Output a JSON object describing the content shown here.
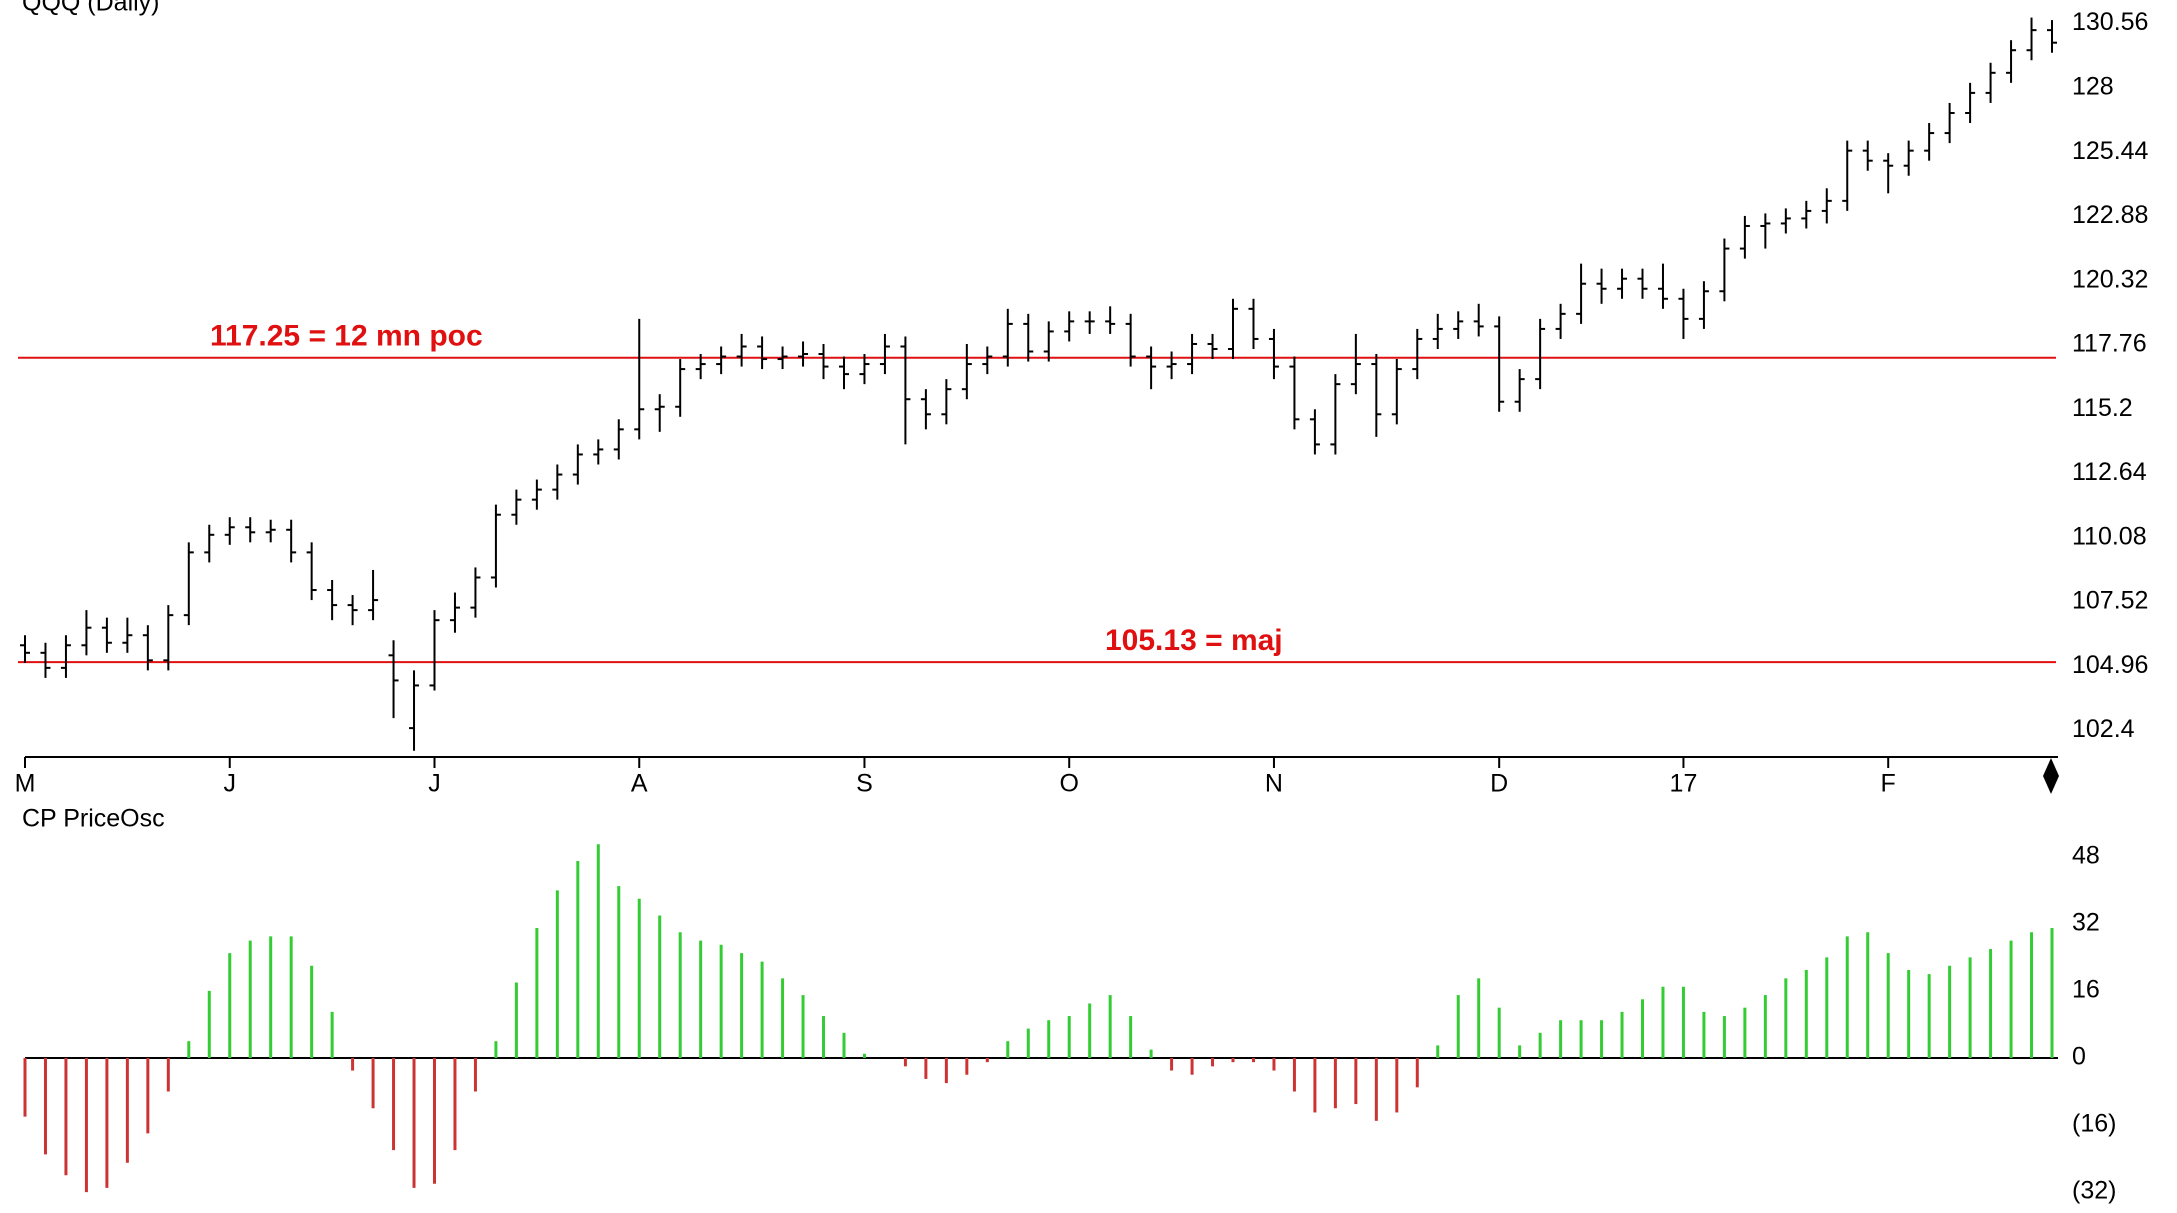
{
  "chart_data": [
    {
      "type": "ohlc",
      "title": "QQQ (Daily)",
      "categories": [
        "M",
        null,
        null,
        null,
        null,
        null,
        null,
        null,
        null,
        null,
        "J",
        null,
        null,
        null,
        null,
        null,
        null,
        null,
        null,
        null,
        "J",
        null,
        null,
        null,
        null,
        null,
        null,
        null,
        null,
        null,
        "A",
        null,
        null,
        null,
        null,
        null,
        null,
        null,
        null,
        null,
        null,
        "S",
        null,
        null,
        null,
        null,
        null,
        null,
        null,
        null,
        null,
        "O",
        null,
        null,
        null,
        null,
        null,
        null,
        null,
        null,
        null,
        "N",
        null,
        null,
        null,
        null,
        null,
        null,
        null,
        null,
        null,
        null,
        "D",
        null,
        null,
        null,
        null,
        null,
        null,
        null,
        null,
        "17",
        null,
        null,
        null,
        null,
        null,
        null,
        null,
        null,
        null,
        "F",
        null,
        null,
        null,
        null,
        null,
        null,
        null,
        null
      ],
      "open": [
        105.8,
        105.5,
        104.9,
        105.8,
        106.5,
        105.9,
        106.2,
        105.2,
        107.0,
        109.5,
        110.2,
        110.5,
        110.3,
        110.4,
        109.5,
        108.0,
        107.4,
        107.2,
        105.4,
        102.5,
        104.2,
        106.8,
        107.3,
        108.5,
        111.0,
        111.6,
        112.0,
        112.6,
        113.4,
        113.6,
        114.4,
        115.2,
        115.3,
        116.8,
        117.0,
        117.3,
        117.7,
        117.2,
        117.3,
        117.4,
        116.9,
        116.6,
        117.0,
        117.7,
        115.6,
        115.0,
        116.0,
        117.0,
        117.3,
        118.6,
        117.5,
        118.3,
        118.7,
        118.7,
        118.6,
        117.3,
        116.9,
        117.0,
        117.8,
        117.6,
        119.2,
        118.0,
        116.9,
        114.8,
        113.8,
        116.2,
        117.0,
        115.0,
        116.8,
        118.0,
        118.4,
        118.7,
        118.5,
        115.5,
        116.4,
        118.4,
        119.0,
        120.2,
        120.0,
        120.4,
        120.0,
        119.6,
        118.8,
        119.9,
        121.6,
        122.5,
        122.6,
        122.8,
        123.1,
        123.5,
        125.5,
        125.1,
        124.9,
        125.5,
        126.2,
        127.0,
        127.8,
        128.6,
        129.5,
        130.3
      ],
      "high": [
        106.2,
        105.9,
        106.2,
        107.2,
        106.9,
        106.9,
        106.6,
        107.4,
        109.9,
        110.6,
        110.9,
        110.9,
        110.8,
        110.8,
        109.9,
        108.4,
        107.8,
        108.8,
        106.0,
        104.8,
        107.2,
        107.9,
        108.9,
        111.4,
        112.0,
        112.4,
        113.0,
        113.8,
        114.0,
        114.8,
        118.8,
        115.8,
        117.2,
        117.4,
        117.7,
        118.2,
        118.1,
        117.7,
        117.9,
        117.8,
        117.3,
        117.4,
        118.2,
        118.1,
        116.0,
        116.4,
        117.8,
        117.7,
        119.2,
        119.0,
        118.7,
        119.1,
        119.1,
        119.3,
        119.0,
        117.7,
        117.5,
        118.2,
        118.2,
        119.6,
        119.6,
        118.4,
        117.3,
        115.2,
        116.6,
        118.2,
        117.4,
        117.2,
        118.4,
        119.0,
        119.1,
        119.4,
        118.9,
        116.8,
        118.8,
        119.4,
        121.0,
        120.8,
        120.8,
        120.8,
        121.0,
        120.0,
        120.3,
        122.0,
        122.9,
        123.0,
        123.2,
        123.5,
        124.0,
        125.9,
        125.9,
        125.4,
        125.9,
        126.6,
        127.4,
        128.2,
        129.0,
        129.9,
        130.8,
        130.7
      ],
      "low": [
        105.1,
        104.5,
        104.5,
        105.4,
        105.5,
        105.5,
        104.8,
        104.8,
        106.6,
        109.1,
        109.8,
        109.9,
        109.9,
        109.1,
        107.6,
        106.8,
        106.6,
        106.8,
        102.9,
        101.6,
        104.0,
        106.3,
        106.9,
        108.1,
        110.6,
        111.2,
        111.6,
        112.2,
        113.0,
        113.2,
        114.0,
        114.3,
        114.9,
        116.4,
        116.6,
        116.9,
        116.8,
        116.8,
        116.9,
        116.4,
        116.0,
        116.2,
        116.6,
        113.8,
        114.4,
        114.6,
        115.6,
        116.6,
        116.9,
        117.1,
        117.1,
        117.9,
        118.2,
        118.2,
        116.9,
        116.0,
        116.4,
        116.6,
        117.2,
        117.2,
        117.6,
        116.4,
        114.4,
        113.4,
        113.4,
        115.8,
        114.1,
        114.6,
        116.4,
        117.6,
        118.0,
        118.1,
        115.1,
        115.1,
        116.0,
        118.0,
        118.6,
        119.4,
        119.6,
        119.6,
        119.2,
        118.0,
        118.4,
        119.5,
        121.2,
        121.6,
        122.2,
        122.4,
        122.6,
        123.1,
        124.7,
        123.8,
        124.5,
        125.1,
        125.8,
        126.6,
        127.4,
        128.2,
        129.1,
        129.4
      ],
      "close": [
        105.5,
        104.9,
        105.8,
        106.5,
        105.9,
        106.2,
        105.2,
        107.0,
        109.5,
        110.2,
        110.5,
        110.3,
        110.4,
        109.5,
        108.0,
        107.4,
        107.2,
        107.6,
        104.4,
        104.2,
        106.8,
        107.3,
        108.5,
        111.0,
        111.6,
        112.0,
        112.6,
        113.4,
        113.6,
        114.4,
        115.2,
        115.3,
        116.8,
        117.0,
        117.3,
        117.7,
        117.2,
        117.3,
        117.4,
        116.9,
        116.6,
        117.0,
        117.7,
        115.6,
        115.0,
        116.0,
        117.0,
        117.3,
        118.6,
        117.5,
        118.3,
        118.7,
        118.7,
        118.6,
        117.3,
        116.9,
        117.0,
        117.8,
        117.6,
        119.2,
        118.0,
        116.9,
        114.8,
        113.8,
        116.2,
        117.0,
        115.0,
        116.8,
        118.0,
        118.4,
        118.7,
        118.5,
        115.5,
        116.4,
        118.4,
        119.0,
        120.2,
        120.0,
        120.4,
        120.0,
        119.6,
        118.8,
        119.9,
        121.6,
        122.5,
        122.6,
        122.8,
        123.1,
        123.5,
        125.5,
        125.1,
        124.9,
        125.5,
        126.2,
        127.0,
        127.8,
        128.6,
        129.5,
        130.3,
        129.8
      ],
      "color": "#000000",
      "ylim": [
        101.35,
        131.5
      ],
      "yticks": [
        130.56,
        128,
        125.44,
        122.88,
        120.32,
        117.76,
        115.2,
        112.64,
        110.08,
        107.52,
        104.96,
        102.4
      ],
      "annotations": [
        {
          "value": 117.25,
          "text": "117.25 = 12 mn poc"
        },
        {
          "value": 105.13,
          "text": "105.13 = maj"
        }
      ],
      "annotation_color": "#e01010"
    },
    {
      "type": "histogram_osc",
      "title": "CP PriceOsc",
      "values": [
        -14,
        -23,
        -28,
        -32,
        -31,
        -25,
        -18,
        -8,
        4,
        16,
        25,
        28,
        29,
        29,
        22,
        11,
        -3,
        -12,
        -22,
        -31,
        -30,
        -22,
        -8,
        4,
        18,
        31,
        40,
        47,
        51,
        41,
        38,
        34,
        30,
        28,
        27,
        25,
        23,
        19,
        15,
        10,
        6,
        1,
        0,
        -2,
        -5,
        -6,
        -4,
        -1,
        4,
        7,
        9,
        10,
        13,
        15,
        10,
        2,
        -3,
        -4,
        -2,
        -1,
        -1,
        -3,
        -8,
        -13,
        -12,
        -11,
        -15,
        -13,
        -7,
        3,
        15,
        19,
        12,
        3,
        6,
        9,
        9,
        9,
        11,
        14,
        17,
        17,
        11,
        10,
        12,
        15,
        19,
        21,
        24,
        29,
        30,
        25,
        21,
        20,
        22,
        24,
        26,
        28,
        30,
        31
      ],
      "positive_color": "#33cc33",
      "negative_color": "#cc3333",
      "ylim": [
        -35.8,
        53.2
      ],
      "yticks": [
        48,
        32,
        16,
        0,
        {
          "value": -16,
          "label": "(16)"
        },
        {
          "value": -32,
          "label": "(32)"
        }
      ]
    }
  ]
}
